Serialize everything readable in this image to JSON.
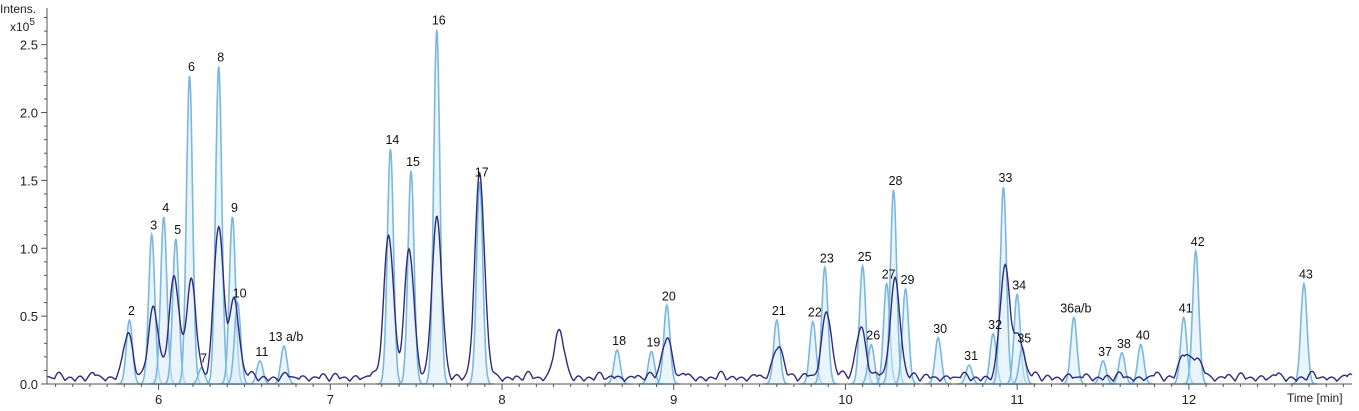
{
  "chart_data": {
    "type": "line",
    "title": "",
    "ylabel": "Intens.",
    "yscale_label": "x10",
    "yscale_exponent": "5",
    "xlabel": "Time [min]",
    "xlim": [
      5.35,
      12.95
    ],
    "ylim": [
      0,
      2.77
    ],
    "x_ticks": [
      6,
      7,
      8,
      9,
      10,
      11,
      12
    ],
    "y_ticks": [
      0.0,
      0.5,
      1.0,
      1.5,
      2.0,
      2.5
    ],
    "y_tick_labels": [
      "0.0",
      "0.5",
      "1.0",
      "1.5",
      "2.0",
      "2.5"
    ],
    "grid": false,
    "colors": {
      "extracted_ion_traces": "#7ab8df",
      "fill": "#d9ecf8",
      "total_trace": "#2f2a7c",
      "axis": "#555555"
    },
    "series": [
      {
        "style": "extracted-ion-peaks"
      },
      {
        "style": "overall-trace"
      }
    ],
    "peaks": [
      {
        "label": "2",
        "x": 5.83,
        "y": 0.47
      },
      {
        "label": "3",
        "x": 5.96,
        "y": 1.1
      },
      {
        "label": "4",
        "x": 6.03,
        "y": 1.23
      },
      {
        "label": "5",
        "x": 6.1,
        "y": 1.07
      },
      {
        "label": "6",
        "x": 6.18,
        "y": 2.27
      },
      {
        "label": "7",
        "x": 6.25,
        "y": 0.12
      },
      {
        "label": "8",
        "x": 6.35,
        "y": 2.34
      },
      {
        "label": "9",
        "x": 6.43,
        "y": 1.23
      },
      {
        "label": "10",
        "x": 6.46,
        "y": 0.6
      },
      {
        "label": "11",
        "x": 6.59,
        "y": 0.17
      },
      {
        "label": "13 a/b",
        "x": 6.73,
        "y": 0.28
      },
      {
        "label": "14",
        "x": 7.35,
        "y": 1.73
      },
      {
        "label": "15",
        "x": 7.47,
        "y": 1.57
      },
      {
        "label": "16",
        "x": 7.62,
        "y": 2.61
      },
      {
        "label": "17",
        "x": 7.87,
        "y": 1.49
      },
      {
        "label": "18",
        "x": 8.67,
        "y": 0.25
      },
      {
        "label": "19",
        "x": 8.87,
        "y": 0.24
      },
      {
        "label": "20",
        "x": 8.96,
        "y": 0.58
      },
      {
        "label": "21",
        "x": 9.6,
        "y": 0.47
      },
      {
        "label": "22",
        "x": 9.81,
        "y": 0.46
      },
      {
        "label": "23",
        "x": 9.88,
        "y": 0.86
      },
      {
        "label": "25",
        "x": 10.1,
        "y": 0.87
      },
      {
        "label": "26",
        "x": 10.15,
        "y": 0.29
      },
      {
        "label": "27",
        "x": 10.24,
        "y": 0.74
      },
      {
        "label": "28",
        "x": 10.28,
        "y": 1.43
      },
      {
        "label": "29",
        "x": 10.35,
        "y": 0.7
      },
      {
        "label": "30",
        "x": 10.54,
        "y": 0.34
      },
      {
        "label": "31",
        "x": 10.72,
        "y": 0.14
      },
      {
        "label": "32",
        "x": 10.86,
        "y": 0.37
      },
      {
        "label": "33",
        "x": 10.92,
        "y": 1.45
      },
      {
        "label": "34",
        "x": 11.0,
        "y": 0.66
      },
      {
        "label": "35",
        "x": 11.03,
        "y": 0.27
      },
      {
        "label": "36a/b",
        "x": 11.33,
        "y": 0.49
      },
      {
        "label": "37",
        "x": 11.5,
        "y": 0.17
      },
      {
        "label": "38",
        "x": 11.61,
        "y": 0.23
      },
      {
        "label": "40",
        "x": 11.72,
        "y": 0.29
      },
      {
        "label": "41",
        "x": 11.97,
        "y": 0.49
      },
      {
        "label": "42",
        "x": 12.04,
        "y": 0.98
      },
      {
        "label": "43",
        "x": 12.67,
        "y": 0.74
      }
    ],
    "total_trace_peaks": [
      {
        "x": 5.82,
        "y": 0.3
      },
      {
        "x": 5.97,
        "y": 0.53
      },
      {
        "x": 6.09,
        "y": 0.75
      },
      {
        "x": 6.19,
        "y": 0.73
      },
      {
        "x": 6.35,
        "y": 1.1
      },
      {
        "x": 6.44,
        "y": 0.58
      },
      {
        "x": 7.34,
        "y": 1.06
      },
      {
        "x": 7.46,
        "y": 0.92
      },
      {
        "x": 7.62,
        "y": 1.18
      },
      {
        "x": 7.87,
        "y": 1.49
      },
      {
        "x": 8.33,
        "y": 0.34
      },
      {
        "x": 8.96,
        "y": 0.3
      },
      {
        "x": 9.61,
        "y": 0.24
      },
      {
        "x": 9.89,
        "y": 0.49
      },
      {
        "x": 10.09,
        "y": 0.38
      },
      {
        "x": 10.29,
        "y": 0.73
      },
      {
        "x": 10.93,
        "y": 0.82
      },
      {
        "x": 11.01,
        "y": 0.31
      },
      {
        "x": 11.97,
        "y": 0.18
      },
      {
        "x": 12.05,
        "y": 0.14
      }
    ]
  }
}
